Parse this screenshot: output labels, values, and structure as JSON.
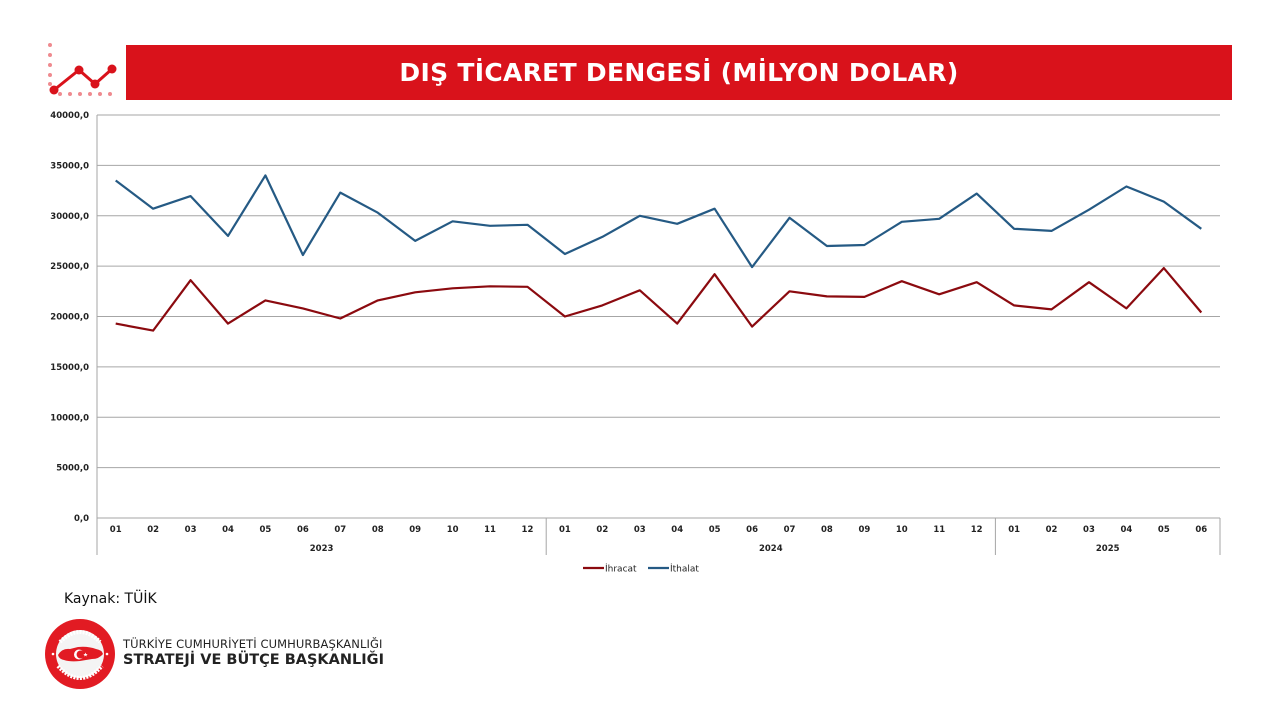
{
  "header": {
    "title": "DIŞ TİCARET DENGESİ (MİLYON DOLAR)",
    "icon": "line-chart-icon",
    "banner_color": "#d9121b"
  },
  "chart_data": {
    "type": "line",
    "title": "DIŞ TİCARET DENGESİ (MİLYON DOLAR)",
    "xlabel": "",
    "ylabel": "",
    "ylim": [
      0,
      40000
    ],
    "yticks": [
      "0,0",
      "5000,0",
      "10000,0",
      "15000,0",
      "20000,0",
      "25000,0",
      "30000,0",
      "35000,0",
      "40000,0"
    ],
    "ytick_values": [
      0,
      5000,
      10000,
      15000,
      20000,
      25000,
      30000,
      35000,
      40000
    ],
    "grid": true,
    "legend_position": "bottom",
    "groups": [
      {
        "label": "2023",
        "months": [
          "01",
          "02",
          "03",
          "04",
          "05",
          "06",
          "07",
          "08",
          "09",
          "10",
          "11",
          "12"
        ]
      },
      {
        "label": "2024",
        "months": [
          "01",
          "02",
          "03",
          "04",
          "05",
          "06",
          "07",
          "08",
          "09",
          "10",
          "11",
          "12"
        ]
      },
      {
        "label": "2025",
        "months": [
          "01",
          "02",
          "03",
          "04",
          "05",
          "06"
        ]
      }
    ],
    "series": [
      {
        "name": "İhracat",
        "color": "#8b0a0f",
        "values": [
          19300,
          18600,
          23600,
          19300,
          21600,
          20800,
          19800,
          21600,
          22400,
          22800,
          23000,
          22950,
          20000,
          21100,
          22600,
          19300,
          24200,
          19000,
          22500,
          22000,
          21950,
          23500,
          22200,
          23400,
          21100,
          20700,
          23400,
          20800,
          24800,
          20400
        ]
      },
      {
        "name": "İthalat",
        "color": "#255a84",
        "values": [
          33500,
          30700,
          31950,
          28000,
          34000,
          26100,
          32300,
          30300,
          27500,
          29450,
          29000,
          29100,
          26200,
          27900,
          30000,
          29200,
          30700,
          24900,
          29800,
          27000,
          27100,
          29400,
          29700,
          32200,
          28700,
          28500,
          30600,
          32900,
          31400,
          28700
        ]
      }
    ]
  },
  "footer": {
    "source": "Kaynak: TÜİK",
    "org_line1": "TÜRKİYE CUMHURİYETİ CUMHURBAŞKANLIĞI",
    "org_line2": "STRATEJİ VE BÜTÇE BAŞKANLIĞI",
    "seal_text_top": "T.C. CUMHURBAŞKANLIĞI",
    "seal_text_bottom": "STRATEJİ VE BÜTÇE BAŞKANLIĞI",
    "seal_color": "#e21b23"
  }
}
